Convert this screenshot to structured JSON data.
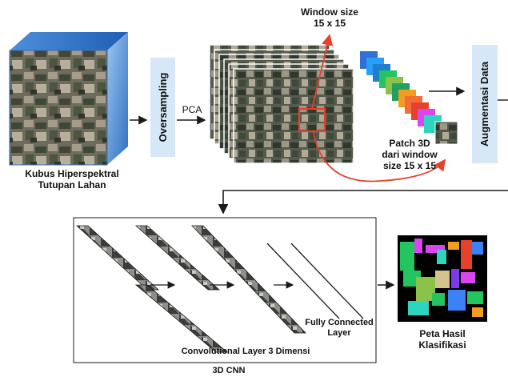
{
  "labels": {
    "window_size": "Window size",
    "window_dims": "15 x 15",
    "cube_caption_1": "Kubus Hiperspektral",
    "cube_caption_2": "Tutupan Lahan",
    "oversampling": "Oversampling",
    "pca": "PCA",
    "patch_1": "Patch 3D",
    "patch_2": "dari window",
    "patch_3": "size 15 x 15",
    "augmentation": "Augmentasi Data",
    "fully_connected_1": "Fully Connected",
    "fully_connected_2": "Layer",
    "conv_layer": "Convolutional Layer 3 Dimensi",
    "cnn_3d": "3D CNN",
    "result_1": "Peta Hasil",
    "result_2": "Klasifikasi"
  },
  "colors": {
    "process_box": "#d6e8f7",
    "cube_side": "#3a7cc9",
    "window_highlight": "#e8412b",
    "arrow": "#1a1a1a",
    "result_background": "#000000",
    "patch_colors": [
      "#2f6fd6",
      "#2a9df4",
      "#22c55e",
      "#8bc34a",
      "#f29d1d",
      "#e8412b",
      "#d946ef",
      "#2dd4bf"
    ]
  },
  "icons": {
    "process_arrow": "right-arrow-icon",
    "red_arrow": "curved-arrow-icon"
  }
}
